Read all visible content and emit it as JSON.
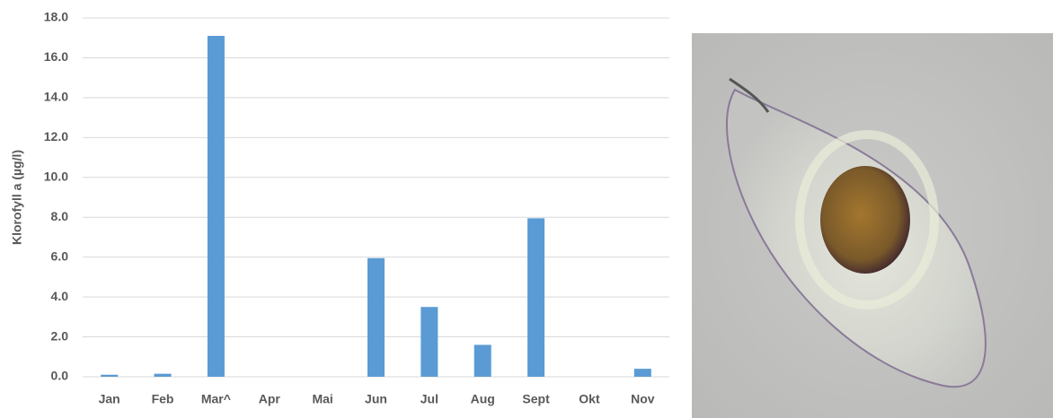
{
  "chart_data": {
    "type": "bar",
    "y_label": "Klorofyll a (µg/l)",
    "categories": [
      "Jan",
      "Feb",
      "Mar^",
      "Apr",
      "Mai",
      "Jun",
      "Jul",
      "Aug",
      "Sept",
      "Okt",
      "Nov"
    ],
    "values": [
      0.1,
      0.15,
      17.1,
      0,
      0,
      5.95,
      3.5,
      1.6,
      7.95,
      0,
      0.4
    ],
    "color": "#5b9bd5",
    "ylim": [
      0,
      18
    ],
    "yticks": [
      {
        "value": 0,
        "label": "0.0"
      },
      {
        "value": 2,
        "label": "2.0"
      },
      {
        "value": 4,
        "label": "4.0"
      },
      {
        "value": 6,
        "label": "6.0"
      },
      {
        "value": 8,
        "label": "8.0"
      },
      {
        "value": 10,
        "label": "10.0"
      },
      {
        "value": 12,
        "label": "12.0"
      },
      {
        "value": 14,
        "label": "14.0"
      },
      {
        "value": 16,
        "label": "16.0"
      },
      {
        "value": 18,
        "label": "18.0"
      }
    ],
    "grid": true
  }
}
